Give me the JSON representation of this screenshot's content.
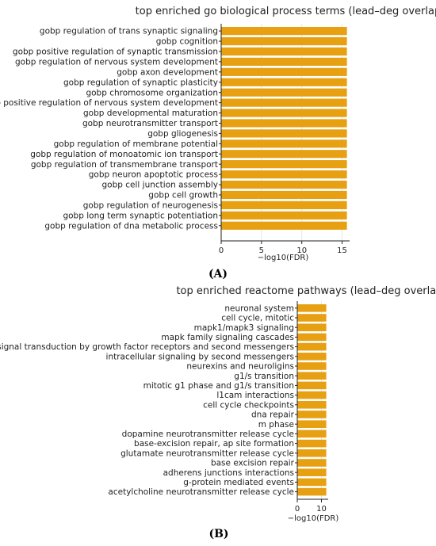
{
  "panels": [
    {
      "panel_label": "(A)",
      "chart_data": {
        "type": "bar",
        "orientation": "horizontal",
        "title": "top enriched go biological process terms (lead–deg overlap)",
        "xlabel": "−log10(FDR)",
        "ylabel": "",
        "xlim": [
          0,
          16
        ],
        "xticks": [
          0,
          5,
          10,
          15
        ],
        "bar_color": "#E6A012",
        "grid": true,
        "categories": [
          "gobp regulation of trans synaptic signaling",
          "gobp cognition",
          "gobp positive regulation of synaptic transmission",
          "gobp regulation of nervous system development",
          "gobp axon development",
          "gobp regulation of synaptic plasticity",
          "gobp chromosome organization",
          "gobp positive regulation of nervous system development",
          "gobp developmental maturation",
          "gobp neurotransmitter transport",
          "gobp gliogenesis",
          "gobp regulation of membrane potential",
          "gobp regulation of monoatomic ion transport",
          "gobp regulation of transmembrane transport",
          "gobp neuron apoptotic process",
          "gobp cell junction assembly",
          "gobp cell growth",
          "gobp regulation of neurogenesis",
          "gobp long term synaptic potentiation",
          "gobp regulation of dna metabolic process"
        ],
        "values": [
          15.6,
          15.6,
          15.6,
          15.6,
          15.6,
          15.6,
          15.6,
          15.6,
          15.6,
          15.6,
          15.6,
          15.6,
          15.6,
          15.6,
          15.6,
          15.6,
          15.6,
          15.6,
          15.6,
          15.6
        ]
      }
    },
    {
      "panel_label": "(B)",
      "chart_data": {
        "type": "bar",
        "orientation": "horizontal",
        "title": "top enriched reactome pathways (lead–deg overlap)",
        "xlabel": "−log10(FDR)",
        "ylabel": "",
        "xlim": [
          0,
          12
        ],
        "xticks": [
          0,
          10
        ],
        "bar_color": "#E6A012",
        "grid": true,
        "categories": [
          "neuronal system",
          "cell cycle, mitotic",
          "mapk1/mapk3 signaling",
          "mapk family signaling cascades",
          "diseases of signal transduction by growth factor receptors and second messengers",
          "intracellular signaling by second messengers",
          "neurexins and neuroligins",
          "g1/s transition",
          "mitotic g1 phase and g1/s transition",
          "l1cam interactions",
          "cell cycle checkpoints",
          "dna repair",
          "m phase",
          "dopamine neurotransmitter release cycle",
          "base-excision repair, ap site formation",
          "glutamate neurotransmitter release cycle",
          "base excision repair",
          "adherens junctions interactions",
          "g-protein mediated events",
          "acetylcholine neurotransmitter release cycle"
        ],
        "values": [
          12,
          12,
          12,
          12,
          12,
          12,
          12,
          12,
          12,
          12,
          12,
          12,
          12,
          12,
          12,
          12,
          12,
          12,
          12,
          12
        ]
      }
    }
  ]
}
